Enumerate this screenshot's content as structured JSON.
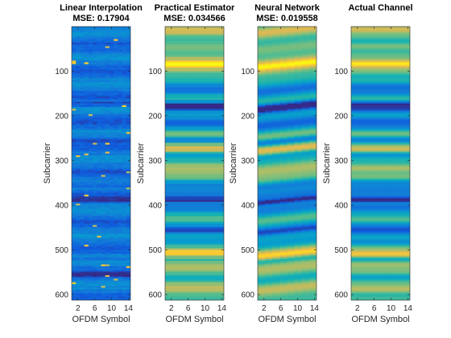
{
  "colormap": "parula",
  "chart_data": [
    {
      "type": "heatmap",
      "title": "Linear Interpolation",
      "subtitle": "MSE: 0.17904",
      "xlabel": "OFDM Symbol",
      "ylabel": "Subcarrier",
      "x_ticks": [
        2,
        6,
        10,
        14
      ],
      "y_ticks": [
        100,
        200,
        300,
        400,
        500,
        600
      ],
      "xlim": [
        0.5,
        14.5
      ],
      "ylim": [
        0.5,
        612.5
      ],
      "y_reversed": true,
      "pattern": "noisy-low",
      "dark_bands": [
        175,
        255,
        355,
        385,
        520,
        555
      ]
    },
    {
      "type": "heatmap",
      "title": "Practical Estimator",
      "subtitle": "MSE: 0.034566",
      "xlabel": "OFDM Symbol",
      "ylabel": "Subcarrier",
      "x_ticks": [
        2,
        6,
        10,
        14
      ],
      "y_ticks": [
        100,
        200,
        300,
        400,
        500,
        600
      ],
      "xlim": [
        0.5,
        14.5
      ],
      "ylim": [
        0.5,
        612.5
      ],
      "y_reversed": true,
      "pattern": "smooth"
    },
    {
      "type": "heatmap",
      "title": "Neural Network",
      "subtitle": "MSE: 0.019558",
      "xlabel": "OFDM Symbol",
      "ylabel": "Subcarrier",
      "x_ticks": [
        2,
        6,
        10,
        14
      ],
      "y_ticks": [
        100,
        200,
        300,
        400,
        500,
        600
      ],
      "xlim": [
        0.5,
        14.5
      ],
      "ylim": [
        0.5,
        612.5
      ],
      "y_reversed": true,
      "pattern": "smooth-tilted"
    },
    {
      "type": "heatmap",
      "title": "Actual Channel",
      "subtitle": "",
      "xlabel": "OFDM Symbol",
      "ylabel": "Subcarrier",
      "x_ticks": [
        2,
        6,
        10,
        14
      ],
      "y_ticks": [
        100,
        200,
        300,
        400,
        500,
        600
      ],
      "xlim": [
        0.5,
        14.5
      ],
      "ylim": [
        0.5,
        612.5
      ],
      "y_reversed": true,
      "pattern": "smooth-fine"
    }
  ]
}
